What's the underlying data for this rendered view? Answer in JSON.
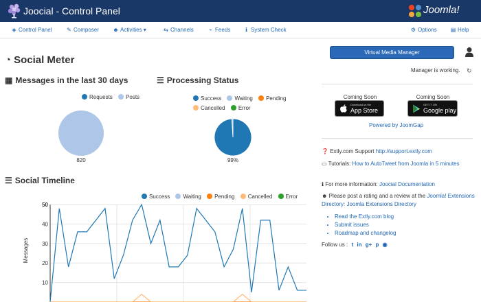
{
  "header": {
    "title": "Joocial - Control Panel",
    "brand": "Joomla!"
  },
  "nav": [
    {
      "label": "Control Panel",
      "icon": "dashboard-icon"
    },
    {
      "label": "Composer",
      "icon": "edit-icon"
    },
    {
      "label": "Activities",
      "icon": "users-icon"
    },
    {
      "label": "Channels",
      "icon": "share-icon"
    },
    {
      "label": "Feeds",
      "icon": "rss-icon"
    },
    {
      "label": "System Check",
      "icon": "info-icon"
    },
    {
      "label": "Options",
      "icon": "gear-icon"
    },
    {
      "label": "Help",
      "icon": "help-icon"
    }
  ],
  "social_meter": {
    "title": "Social Meter",
    "messages": {
      "title": "Messages in the last 30 days",
      "legend": [
        "Requests",
        "Posts"
      ],
      "value_label": "820"
    },
    "processing": {
      "title": "Processing Status",
      "legend": [
        "Success",
        "Waiting",
        "Pending",
        "Cancelled",
        "Error"
      ],
      "value_label": "99%"
    }
  },
  "timeline": {
    "title": "Social Timeline",
    "legend": [
      "Success",
      "Waiting",
      "Pending",
      "Cancelled",
      "Error"
    ],
    "ylabel": "Messages",
    "yticks": [
      "10",
      "20",
      "30",
      "40",
      "50"
    ]
  },
  "colors": {
    "header_bg": "#1a3867",
    "link": "#1f66b4",
    "success": "#1f77b4",
    "waiting": "#aec7e8",
    "pending": "#ff7f0e",
    "cancelled": "#ffbb78",
    "error": "#2ca02c"
  },
  "chart_data": [
    {
      "type": "pie",
      "title": "Messages in the last 30 days",
      "labels": [
        "Requests",
        "Posts"
      ],
      "values": [
        0,
        820
      ]
    },
    {
      "type": "pie",
      "title": "Processing Status",
      "labels": [
        "Success",
        "Waiting",
        "Pending",
        "Cancelled",
        "Error"
      ],
      "values": [
        99,
        1,
        0,
        0,
        0
      ]
    },
    {
      "type": "line",
      "title": "Social Timeline",
      "ylabel": "Messages",
      "ylim": [
        0,
        50
      ],
      "yticks": [
        10,
        20,
        30,
        40,
        50
      ],
      "grid": true,
      "series": [
        {
          "name": "Success",
          "values": [
            0,
            48,
            18,
            36,
            36,
            42,
            48,
            12,
            24,
            42,
            50,
            30,
            42,
            18,
            18,
            24,
            48,
            42,
            36,
            18,
            27,
            48,
            5,
            42,
            42,
            6,
            18,
            6,
            6
          ]
        },
        {
          "name": "Pending",
          "values": [
            0,
            0,
            0,
            0,
            0,
            0,
            0,
            0,
            0,
            0,
            0,
            0,
            0,
            0,
            0,
            0,
            0,
            0,
            0,
            0,
            0,
            0,
            0,
            0,
            0,
            0,
            0,
            0,
            0
          ]
        },
        {
          "name": "Cancelled",
          "values": [
            0,
            0,
            0,
            0,
            0,
            0,
            0,
            0,
            0,
            0,
            4,
            0,
            0,
            0,
            0,
            0,
            0,
            0,
            0,
            0,
            0,
            4,
            0,
            0,
            0,
            0,
            0,
            0,
            0
          ]
        }
      ]
    }
  ],
  "sidebar": {
    "vmm_button": "Virtual Media Manager",
    "working": "Manager is working.",
    "coming_soon": "Coming Soon",
    "appstore": {
      "small": "Download on the",
      "big": "App Store"
    },
    "googleplay": {
      "small": "GET IT ON",
      "big": "Google play"
    },
    "powered": "Powered by JoomGap",
    "support_label": "Extly.com Support",
    "support_link": "http://support.extly.com",
    "tutorials_label": "Tutorials:",
    "tutorials_link": "How to AutoTweet from Joomla in 5 minutes",
    "more_info_label": "For more information:",
    "more_info_link": "Joocial Documentation",
    "rate_text": "Please post a rating and a review at the",
    "rate_link": "Joomla! Extensions Directory: Joomla Extensions Directory",
    "links": [
      "Read the Extly.com blog",
      "Submit issues",
      "Roadmap and changelog"
    ],
    "follow": "Follow us :"
  }
}
